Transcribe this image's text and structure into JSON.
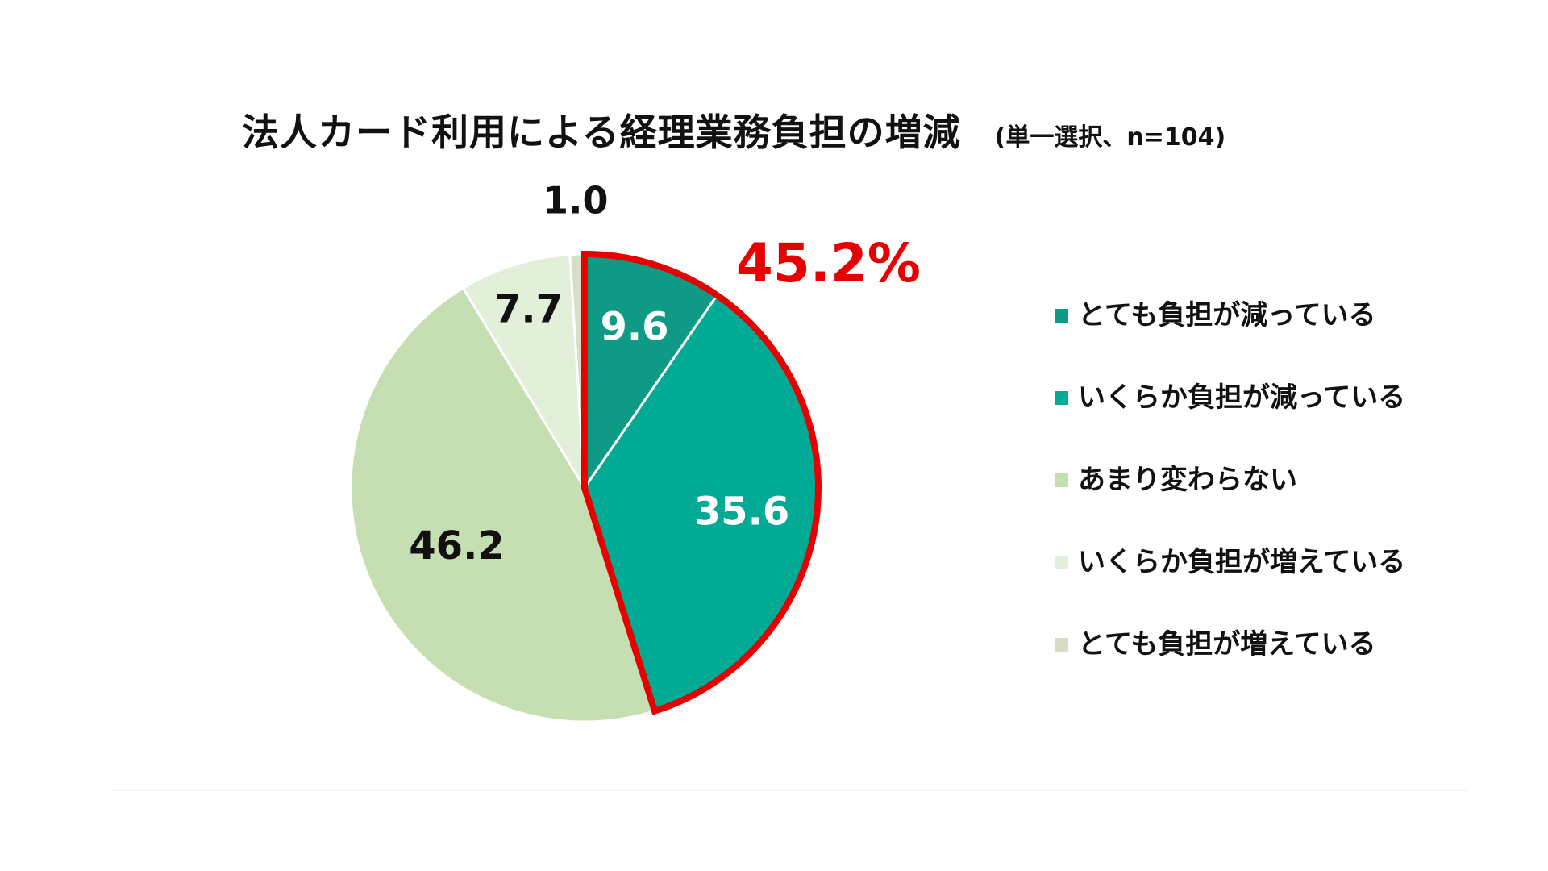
{
  "chart_data": {
    "type": "pie",
    "title": "法人カード利用による経理業務負担の増減",
    "subtitle": "(単一選択、n=104)",
    "categories": [
      "とても負担が減っている",
      "いくらか負担が減っている",
      "あまり変わらない",
      "いくらか負担が増えている",
      "とても負担が増えている"
    ],
    "values": [
      9.6,
      35.6,
      46.2,
      7.7,
      1.0
    ],
    "value_labels": [
      "9.6",
      "35.6",
      "46.2",
      "7.7",
      "1.0"
    ],
    "colors": [
      "#0e9a85",
      "#00aa94",
      "#c5dfb3",
      "#e2efd9",
      "#d7dcc4"
    ],
    "label_colors": [
      "#ffffff",
      "#ffffff",
      "#111111",
      "#111111",
      "#111111"
    ],
    "start_angle_deg": 0,
    "direction": "clockwise",
    "highlight": {
      "slices": [
        0,
        1
      ],
      "label": "45.2%",
      "color": "#e60000"
    },
    "legend_position": "right"
  }
}
